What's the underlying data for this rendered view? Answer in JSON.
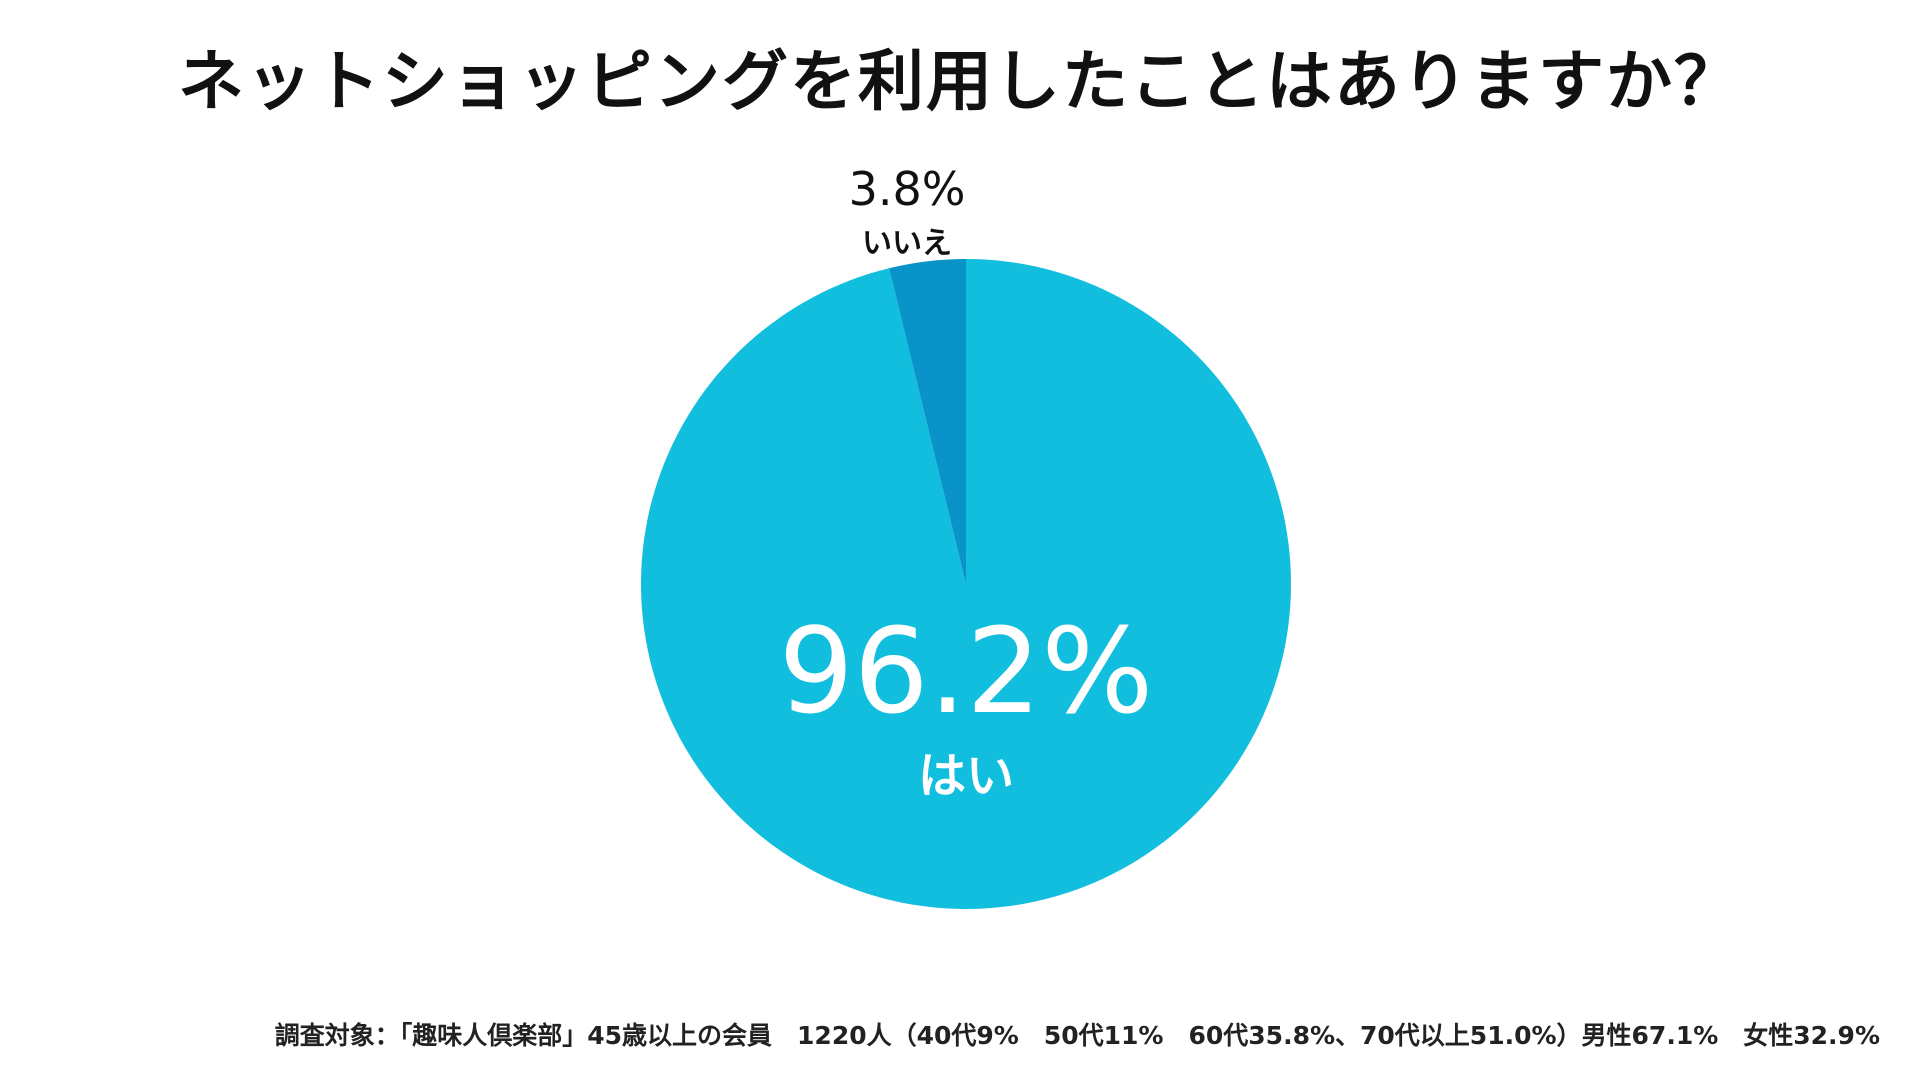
{
  "chart_data": {
    "type": "pie",
    "title": "ネットショッピングを利用したことはありますか？",
    "slices": [
      {
        "label": "はい",
        "value": 96.2,
        "value_label": "96.2%",
        "color": "#12BEDE"
      },
      {
        "label": "いいえ",
        "value": 3.8,
        "value_label": "3.8%",
        "color": "#0A93C8"
      }
    ],
    "start": "12 o'clock",
    "direction": "clockwise",
    "legend": "none"
  },
  "footnote": "調査対象：「趣味人倶楽部」45歳以上の会員　1220人（40代9%　50代11%　60代35.8%、70代以上51.0%）男性67.1%　女性32.9%"
}
